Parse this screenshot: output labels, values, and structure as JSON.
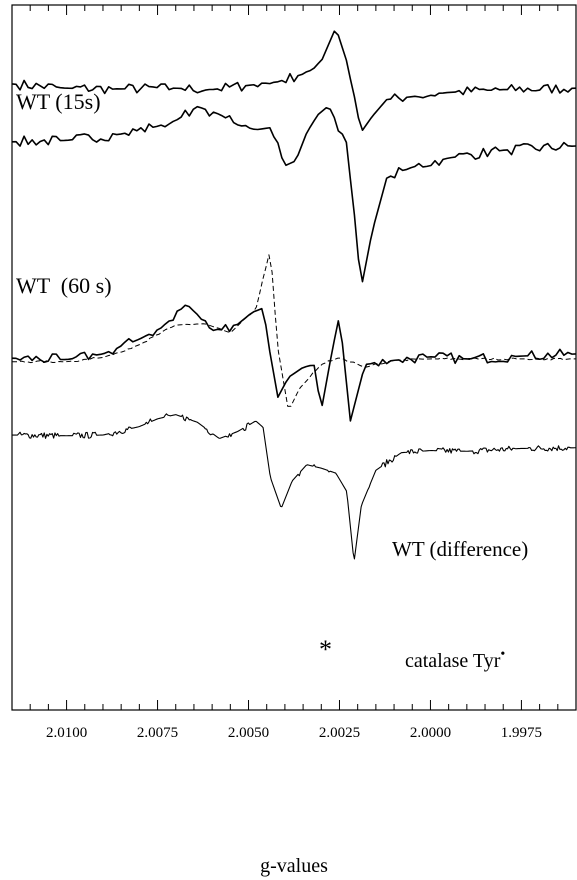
{
  "chart_data": {
    "type": "line",
    "xlabel": "g-values",
    "ylabel": "",
    "x_reversed": true,
    "xlim": [
      2.0115,
      1.996
    ],
    "ylim": [
      0,
      1
    ],
    "x_ticks": [
      {
        "value": 2.01,
        "label": "2.0100"
      },
      {
        "value": 2.0075,
        "label": "2.0075"
      },
      {
        "value": 2.005,
        "label": "2.0050"
      },
      {
        "value": 2.0025,
        "label": "2.0025"
      },
      {
        "value": 2.0,
        "label": "2.0000"
      },
      {
        "value": 1.9975,
        "label": "1.9975"
      }
    ],
    "grid": false,
    "series": [
      {
        "name": "WT (15s)",
        "style": "solid",
        "points": [
          [
            2.0115,
            0.888
          ],
          [
            2.01,
            0.882
          ],
          [
            2.0085,
            0.881
          ],
          [
            2.007,
            0.882
          ],
          [
            2.006,
            0.88
          ],
          [
            2.005,
            0.886
          ],
          [
            2.0042,
            0.891
          ],
          [
            2.0035,
            0.902
          ],
          [
            2.003,
            0.92
          ],
          [
            2.0026,
            0.968
          ],
          [
            2.0023,
            0.92
          ],
          [
            2.0019,
            0.82
          ],
          [
            2.0016,
            0.842
          ],
          [
            2.0012,
            0.866
          ],
          [
            2.0005,
            0.87
          ],
          [
            1.9995,
            0.876
          ],
          [
            1.998,
            0.88
          ],
          [
            1.996,
            0.882
          ]
        ]
      },
      {
        "name": "WT (60 s)",
        "style": "solid",
        "points": [
          [
            2.0115,
            0.806
          ],
          [
            2.01,
            0.808
          ],
          [
            2.0085,
            0.817
          ],
          [
            2.0075,
            0.828
          ],
          [
            2.007,
            0.836
          ],
          [
            2.0064,
            0.856
          ],
          [
            2.0058,
            0.845
          ],
          [
            2.0053,
            0.83
          ],
          [
            2.0048,
            0.823
          ],
          [
            2.0044,
            0.826
          ],
          [
            2.004,
            0.772
          ],
          [
            2.0037,
            0.779
          ],
          [
            2.0034,
            0.819
          ],
          [
            2.0031,
            0.844
          ],
          [
            2.0028,
            0.857
          ],
          [
            2.0023,
            0.804
          ],
          [
            2.0019,
            0.599
          ],
          [
            2.0016,
            0.679
          ],
          [
            2.0012,
            0.755
          ],
          [
            2.0005,
            0.77
          ],
          [
            1.9995,
            0.783
          ],
          [
            1.998,
            0.794
          ],
          [
            1.996,
            0.8
          ]
        ]
      },
      {
        "name": "WT (difference)",
        "style": "solid",
        "points": [
          [
            2.0115,
            0.499
          ],
          [
            2.01,
            0.497
          ],
          [
            2.009,
            0.505
          ],
          [
            2.008,
            0.526
          ],
          [
            2.0074,
            0.542
          ],
          [
            2.0067,
            0.576
          ],
          [
            2.006,
            0.538
          ],
          [
            2.0053,
            0.547
          ],
          [
            2.0049,
            0.564
          ],
          [
            2.0046,
            0.57
          ],
          [
            2.0042,
            0.443
          ],
          [
            2.0039,
            0.472
          ],
          [
            2.0035,
            0.486
          ],
          [
            2.0032,
            0.49
          ],
          [
            2.003,
            0.425
          ],
          [
            2.0027,
            0.51
          ],
          [
            2.0025,
            0.56
          ],
          [
            2.0022,
            0.41
          ],
          [
            2.0018,
            0.49
          ],
          [
            2.001,
            0.496
          ],
          [
            2.0,
            0.501
          ],
          [
            1.999,
            0.498
          ],
          [
            1.9975,
            0.502
          ],
          [
            1.996,
            0.505
          ]
        ]
      },
      {
        "name": "",
        "style": "dashed",
        "points": [
          [
            2.0115,
            0.494
          ],
          [
            2.01,
            0.494
          ],
          [
            2.009,
            0.5
          ],
          [
            2.008,
            0.518
          ],
          [
            2.007,
            0.546
          ],
          [
            2.0062,
            0.548
          ],
          [
            2.0055,
            0.535
          ],
          [
            2.0048,
            0.568
          ],
          [
            2.0044,
            0.654
          ],
          [
            2.0042,
            0.515
          ],
          [
            2.0039,
            0.424
          ],
          [
            2.0036,
            0.456
          ],
          [
            2.003,
            0.49
          ],
          [
            2.0025,
            0.5
          ],
          [
            2.0018,
            0.486
          ],
          [
            2.001,
            0.496
          ],
          [
            2.0,
            0.498
          ],
          [
            1.9975,
            0.498
          ],
          [
            1.996,
            0.498
          ]
        ]
      },
      {
        "name": "catalase Tyr•",
        "style": "solid",
        "points": [
          [
            2.0115,
            0.39
          ],
          [
            2.01,
            0.389
          ],
          [
            2.009,
            0.39
          ],
          [
            2.008,
            0.402
          ],
          [
            2.0075,
            0.413
          ],
          [
            2.007,
            0.419
          ],
          [
            2.0064,
            0.408
          ],
          [
            2.0058,
            0.385
          ],
          [
            2.0053,
            0.395
          ],
          [
            2.0048,
            0.41
          ],
          [
            2.0046,
            0.401
          ],
          [
            2.0044,
            0.33
          ],
          [
            2.0041,
            0.286
          ],
          [
            2.0038,
            0.325
          ],
          [
            2.0034,
            0.348
          ],
          [
            2.003,
            0.343
          ],
          [
            2.0026,
            0.336
          ],
          [
            2.0023,
            0.31
          ],
          [
            2.0021,
            0.21
          ],
          [
            2.0019,
            0.29
          ],
          [
            2.0015,
            0.34
          ],
          [
            2.0008,
            0.365
          ],
          [
            2.0,
            0.368
          ],
          [
            1.999,
            0.367
          ],
          [
            1.9975,
            0.371
          ],
          [
            1.996,
            0.372
          ]
        ]
      }
    ],
    "annotations": [
      {
        "text": "WT (15s)",
        "series": "WT (15s)"
      },
      {
        "text": "WT  (60 s)",
        "series": "WT (60 s)"
      },
      {
        "text": "WT (difference)",
        "series": "WT (difference)"
      },
      {
        "text": "catalase Tyr",
        "superscript": "•",
        "series": "catalase Tyr•"
      },
      {
        "text": "*",
        "series": "WT (difference)"
      }
    ]
  }
}
